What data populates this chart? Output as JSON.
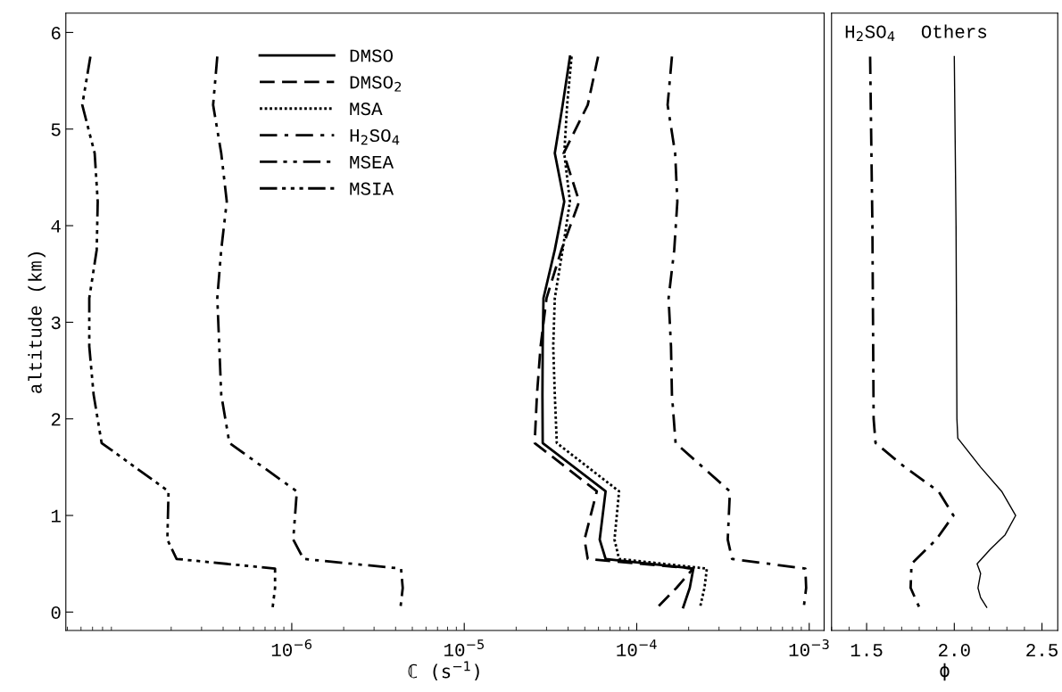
{
  "chart_data": [
    {
      "type": "line",
      "xlabel": "ℂ (s$^{−1}$)",
      "ylabel": "altitude (km)",
      "log": "x",
      "legend": "top",
      "grid": false,
      "xlim": [
        4.9e-08,
        0.00122
      ],
      "ylim": [
        -0.19,
        6.2
      ],
      "xticks": [
        {
          "value": 1e-06,
          "label": "10$^{−6}$"
        },
        {
          "value": 1e-05,
          "label": "10$^{−5}$"
        },
        {
          "value": 0.0001,
          "label": "10$^{−4}$"
        },
        {
          "value": 0.001,
          "label": "10$^{−3}$"
        }
      ],
      "yticks": [
        0,
        1,
        2,
        3,
        4,
        5,
        6
      ],
      "series": [
        {
          "name": "DMSO",
          "color": "#000000",
          "line_style": "solid",
          "x": [
            4.1e-05,
            3.72e-05,
            3.35e-05,
            3.8e-05,
            3.35e-05,
            2.88e-05,
            2.85e-05,
            2.84e-05,
            2.85e-05,
            6.6e-05,
            6.1e-05,
            6.6e-05,
            0.000213,
            0.000203,
            0.000186
          ],
          "values": [
            5.75,
            5.25,
            4.75,
            4.25,
            3.75,
            3.25,
            2.75,
            2.25,
            1.75,
            1.25,
            0.75,
            0.55,
            0.45,
            0.25,
            0.05
          ]
        },
        {
          "name": "DMSO$_{2}$",
          "color": "#000000",
          "line_style": "dashed",
          "x": [
            5.97e-05,
            5.2e-05,
            3.77e-05,
            4.64e-05,
            3.66e-05,
            3e-05,
            2.77e-05,
            2.64e-05,
            2.56e-05,
            5.87e-05,
            4.98e-05,
            5.2e-05,
            0.000212,
            0.00017,
            0.000132
          ],
          "values": [
            5.75,
            5.25,
            4.75,
            4.25,
            3.75,
            3.25,
            2.75,
            2.25,
            1.75,
            1.25,
            0.75,
            0.55,
            0.45,
            0.25,
            0.05
          ]
        },
        {
          "name": "MSA",
          "color": "#000000",
          "line_style": "dotted",
          "x": [
            4.19e-05,
            3.95e-05,
            3.8e-05,
            4.1e-05,
            3.72e-05,
            3.35e-05,
            3.28e-05,
            3.35e-05,
            3.44e-05,
            7.9e-05,
            7.43e-05,
            7.9e-05,
            0.000255,
            0.000247,
            0.000233
          ],
          "values": [
            5.75,
            5.25,
            4.75,
            4.25,
            3.75,
            3.25,
            2.75,
            2.25,
            1.75,
            1.25,
            0.75,
            0.55,
            0.45,
            0.25,
            0.05
          ]
        },
        {
          "name": "H$_{2}$SO$_{4}$",
          "color": "#000000",
          "line_style": "dashdot",
          "x": [
            0.00016,
            0.000151,
            0.000167,
            0.000172,
            0.000165,
            0.000153,
            0.000158,
            0.00016,
            0.000168,
            0.000347,
            0.000337,
            0.000357,
            0.00095,
            0.00096,
            0.00093
          ],
          "values": [
            5.75,
            5.25,
            4.75,
            4.25,
            3.75,
            3.25,
            2.75,
            2.25,
            1.75,
            1.25,
            0.75,
            0.55,
            0.45,
            0.25,
            0.05
          ]
        },
        {
          "name": "MSEA",
          "color": "#000000",
          "line_style": "dashdotdot",
          "x": [
            3.7e-07,
            3.5e-07,
            3.9e-07,
            4.2e-07,
            3.9e-07,
            3.7e-07,
            3.8e-07,
            3.9e-07,
            4.35e-07,
            1.07e-06,
            1.02e-06,
            1.17e-06,
            4.3e-06,
            4.4e-06,
            4.27e-06
          ],
          "values": [
            5.75,
            5.25,
            4.75,
            4.25,
            3.75,
            3.25,
            2.75,
            2.25,
            1.75,
            1.25,
            0.75,
            0.55,
            0.45,
            0.25,
            0.05
          ]
        },
        {
          "name": "MSIA",
          "color": "#000000",
          "line_style": "dashdotdotdot",
          "x": [
            6.8e-08,
            6.1e-08,
            7.2e-08,
            7.5e-08,
            7.4e-08,
            6.7e-08,
            6.7e-08,
            7.1e-08,
            7.9e-08,
            1.93e-07,
            1.9e-07,
            2.15e-07,
            8e-07,
            8e-07,
            7.75e-07
          ],
          "values": [
            5.75,
            5.25,
            4.75,
            4.25,
            3.75,
            3.25,
            2.75,
            2.25,
            1.75,
            1.25,
            0.75,
            0.55,
            0.45,
            0.25,
            0.05
          ]
        }
      ]
    },
    {
      "type": "line",
      "xlabel": "ϕ",
      "tick_labels": "x",
      "grid": false,
      "legend": false,
      "xlim": [
        1.3,
        2.59
      ],
      "ylim": [
        -0.19,
        6.2
      ],
      "xticks": [
        {
          "value": 1.5,
          "label": "1.5"
        },
        {
          "value": 2.0,
          "label": "2.0"
        },
        {
          "value": 2.5,
          "label": "2.5"
        }
      ],
      "yticks": [
        0,
        1,
        2,
        3,
        4,
        5,
        6
      ],
      "series": [
        {
          "name": "H$_{2}$SO$_{4}$",
          "color": "#000000",
          "line_style": "dashdot",
          "x": [
            1.52,
            1.533,
            1.54,
            1.551,
            1.718,
            1.91,
            1.995,
            1.897,
            1.756,
            1.751,
            1.8
          ],
          "values": [
            5.75,
            4.0,
            2.0,
            1.75,
            1.5,
            1.25,
            1.0,
            0.75,
            0.5,
            0.25,
            0.05
          ]
        },
        {
          "name": "Others",
          "color": "#000000",
          "line_style": "solid",
          "x": [
            2.0,
            2.01,
            2.015,
            2.02,
            2.15,
            2.27,
            2.35,
            2.29,
            2.205,
            2.13,
            2.15,
            2.135,
            2.15,
            2.185
          ],
          "values": [
            5.75,
            4.0,
            2.0,
            1.8,
            1.5,
            1.25,
            1.0,
            0.8,
            0.65,
            0.5,
            0.4,
            0.25,
            0.15,
            0.05
          ]
        }
      ]
    }
  ]
}
